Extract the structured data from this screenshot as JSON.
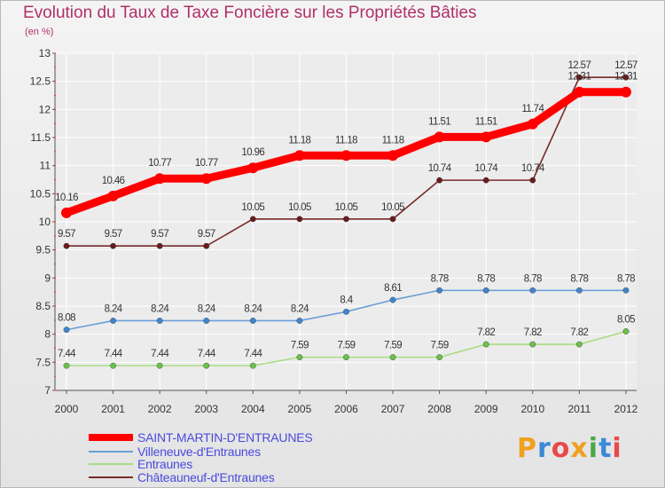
{
  "chart_data": {
    "type": "line",
    "title": "Evolution du Taux de Taxe Foncière sur les Propriétés Bâties",
    "subtitle": "(en %)",
    "ylim": [
      7,
      13
    ],
    "yticks": [
      "7",
      "7.5",
      "8",
      "8.5",
      "9",
      "9.5",
      "10",
      "10.5",
      "11",
      "11.5",
      "12",
      "12.5",
      "13"
    ],
    "x": [
      "2000",
      "2001",
      "2002",
      "2003",
      "2004",
      "2005",
      "2006",
      "2007",
      "2008",
      "2009",
      "2010",
      "2011",
      "2012"
    ],
    "grid": true,
    "legend_position": "bottom-left",
    "series": [
      {
        "name": "SAINT-MARTIN-D'ENTRAUNES",
        "color": "#ff0000",
        "marker_color": "#ff0000",
        "values": [
          10.16,
          10.46,
          10.77,
          10.77,
          10.96,
          11.18,
          11.18,
          11.18,
          11.51,
          11.51,
          11.74,
          12.31,
          12.31
        ],
        "labels": [
          "10.16",
          "10.46",
          "10.77",
          "10.77",
          "10.96",
          "11.18",
          "11.18",
          "11.18",
          "11.51",
          "11.51",
          "11.74",
          "12.31",
          "12.31"
        ]
      },
      {
        "name": "Villeneuve-d'Entraunes",
        "color": "#6a9fd8",
        "marker_color": "#3f86cc",
        "values": [
          8.08,
          8.24,
          8.24,
          8.24,
          8.24,
          8.24,
          8.4,
          8.61,
          8.78,
          8.78,
          8.78,
          8.78,
          8.78
        ],
        "labels": [
          "8.08",
          "8.24",
          "8.24",
          "8.24",
          "8.24",
          "8.24",
          "8.4",
          "8.61",
          "8.78",
          "8.78",
          "8.78",
          "8.78",
          "8.78"
        ]
      },
      {
        "name": "Entraunes",
        "color": "#a8dc80",
        "marker_color": "#6ac24a",
        "values": [
          7.44,
          7.44,
          7.44,
          7.44,
          7.44,
          7.59,
          7.59,
          7.59,
          7.59,
          7.82,
          7.82,
          7.82,
          8.05
        ],
        "labels": [
          "7.44",
          "7.44",
          "7.44",
          "7.44",
          "7.44",
          "7.59",
          "7.59",
          "7.59",
          "7.59",
          "7.82",
          "7.82",
          "7.82",
          "8.05"
        ]
      },
      {
        "name": "Châteauneuf-d'Entraunes",
        "color": "#7a2a2a",
        "marker_color": "#6a1c1c",
        "values": [
          9.57,
          9.57,
          9.57,
          9.57,
          10.05,
          10.05,
          10.05,
          10.05,
          10.74,
          10.74,
          10.74,
          12.57,
          12.57
        ],
        "labels": [
          "9.57",
          "9.57",
          "9.57",
          "9.57",
          "10.05",
          "10.05",
          "10.05",
          "10.05",
          "10.74",
          "10.74",
          "10.74",
          "12.57",
          "12.57"
        ]
      }
    ]
  },
  "logo": {
    "letters": [
      "P",
      "r",
      "o",
      "x",
      "i",
      "t",
      "i"
    ],
    "colors": [
      "#f0a020",
      "#3a8ad8",
      "#e84a4a",
      "#f0a020",
      "#4aa84a",
      "#3a8ad8",
      "#e84a4a"
    ]
  }
}
